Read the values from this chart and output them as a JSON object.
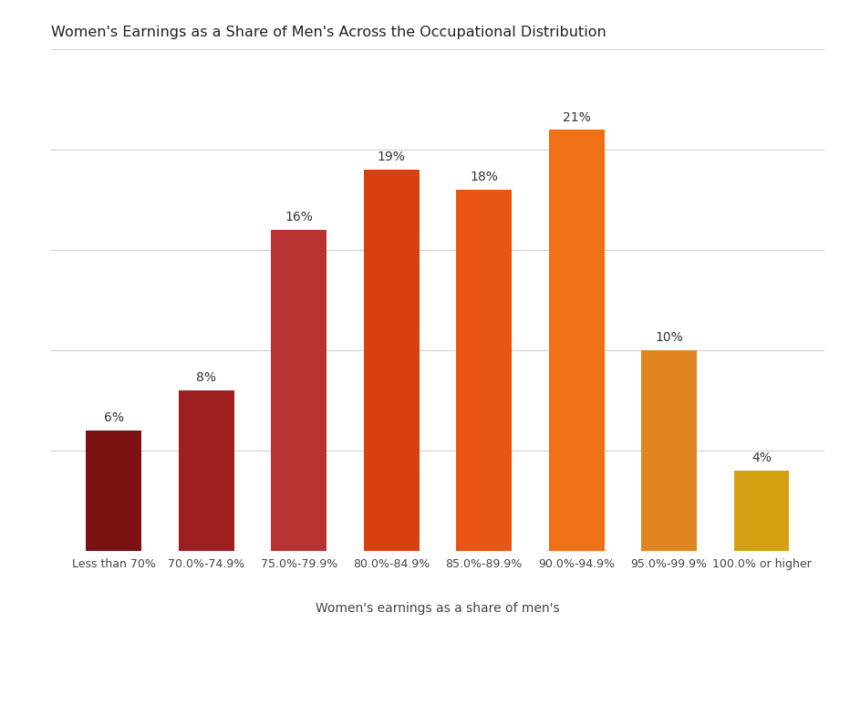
{
  "title": "Women's Earnings as a Share of Men's Across the Occupational Distribution",
  "xlabel": "Women's earnings as a share of men's",
  "ylabel": "",
  "categories": [
    "Less than 70%",
    "70.0%-74.9%",
    "75.0%-79.9%",
    "80.0%-84.9%",
    "85.0%-89.9%",
    "90.0%-94.9%",
    "95.0%-99.9%",
    "100.0% or higher"
  ],
  "values": [
    6,
    8,
    16,
    19,
    18,
    21,
    10,
    4
  ],
  "bar_colors": [
    "#7a1212",
    "#9e1f1f",
    "#b83232",
    "#d94010",
    "#e85515",
    "#f07015",
    "#e08520",
    "#d4a012"
  ],
  "ylim": [
    0,
    25
  ],
  "yticks": [
    0,
    5,
    10,
    15,
    20,
    25
  ],
  "title_fontsize": 11.5,
  "label_fontsize": 10,
  "tick_fontsize": 9,
  "value_fontsize": 10,
  "background_color": "#ffffff",
  "grid_color": "#cccccc"
}
